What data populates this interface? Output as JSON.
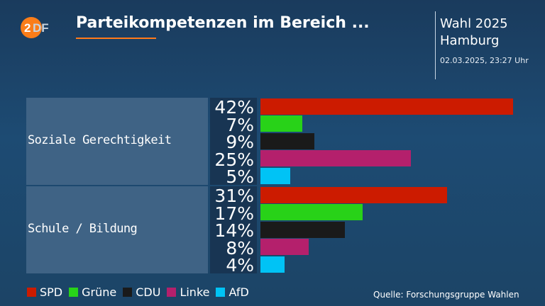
{
  "header": {
    "title": "Parteikompetenzen im Bereich ...",
    "election": "Wahl 2025",
    "region": "Hamburg",
    "timestamp": "02.03.2025, 23:27 Uhr"
  },
  "source": "Quelle: Forschungsgruppe Wahlen",
  "colors": {
    "SPD": "#cc1b00",
    "Grüne": "#28d218",
    "CDU": "#1a1a1a",
    "Linke": "#b4206c",
    "AfD": "#00c3f5"
  },
  "chart_data": {
    "type": "bar",
    "orientation": "horizontal",
    "categories": [
      "Soziale Gerechtigkeit",
      "Schule / Bildung"
    ],
    "series": [
      {
        "name": "SPD",
        "values": [
          42,
          31
        ]
      },
      {
        "name": "Grüne",
        "values": [
          7,
          17
        ]
      },
      {
        "name": "CDU",
        "values": [
          9,
          14
        ]
      },
      {
        "name": "Linke",
        "values": [
          25,
          8
        ]
      },
      {
        "name": "AfD",
        "values": [
          5,
          4
        ]
      }
    ],
    "value_suffix": "%",
    "xlim": [
      0,
      42
    ],
    "legend_position": "bottom-left",
    "grid": false
  }
}
